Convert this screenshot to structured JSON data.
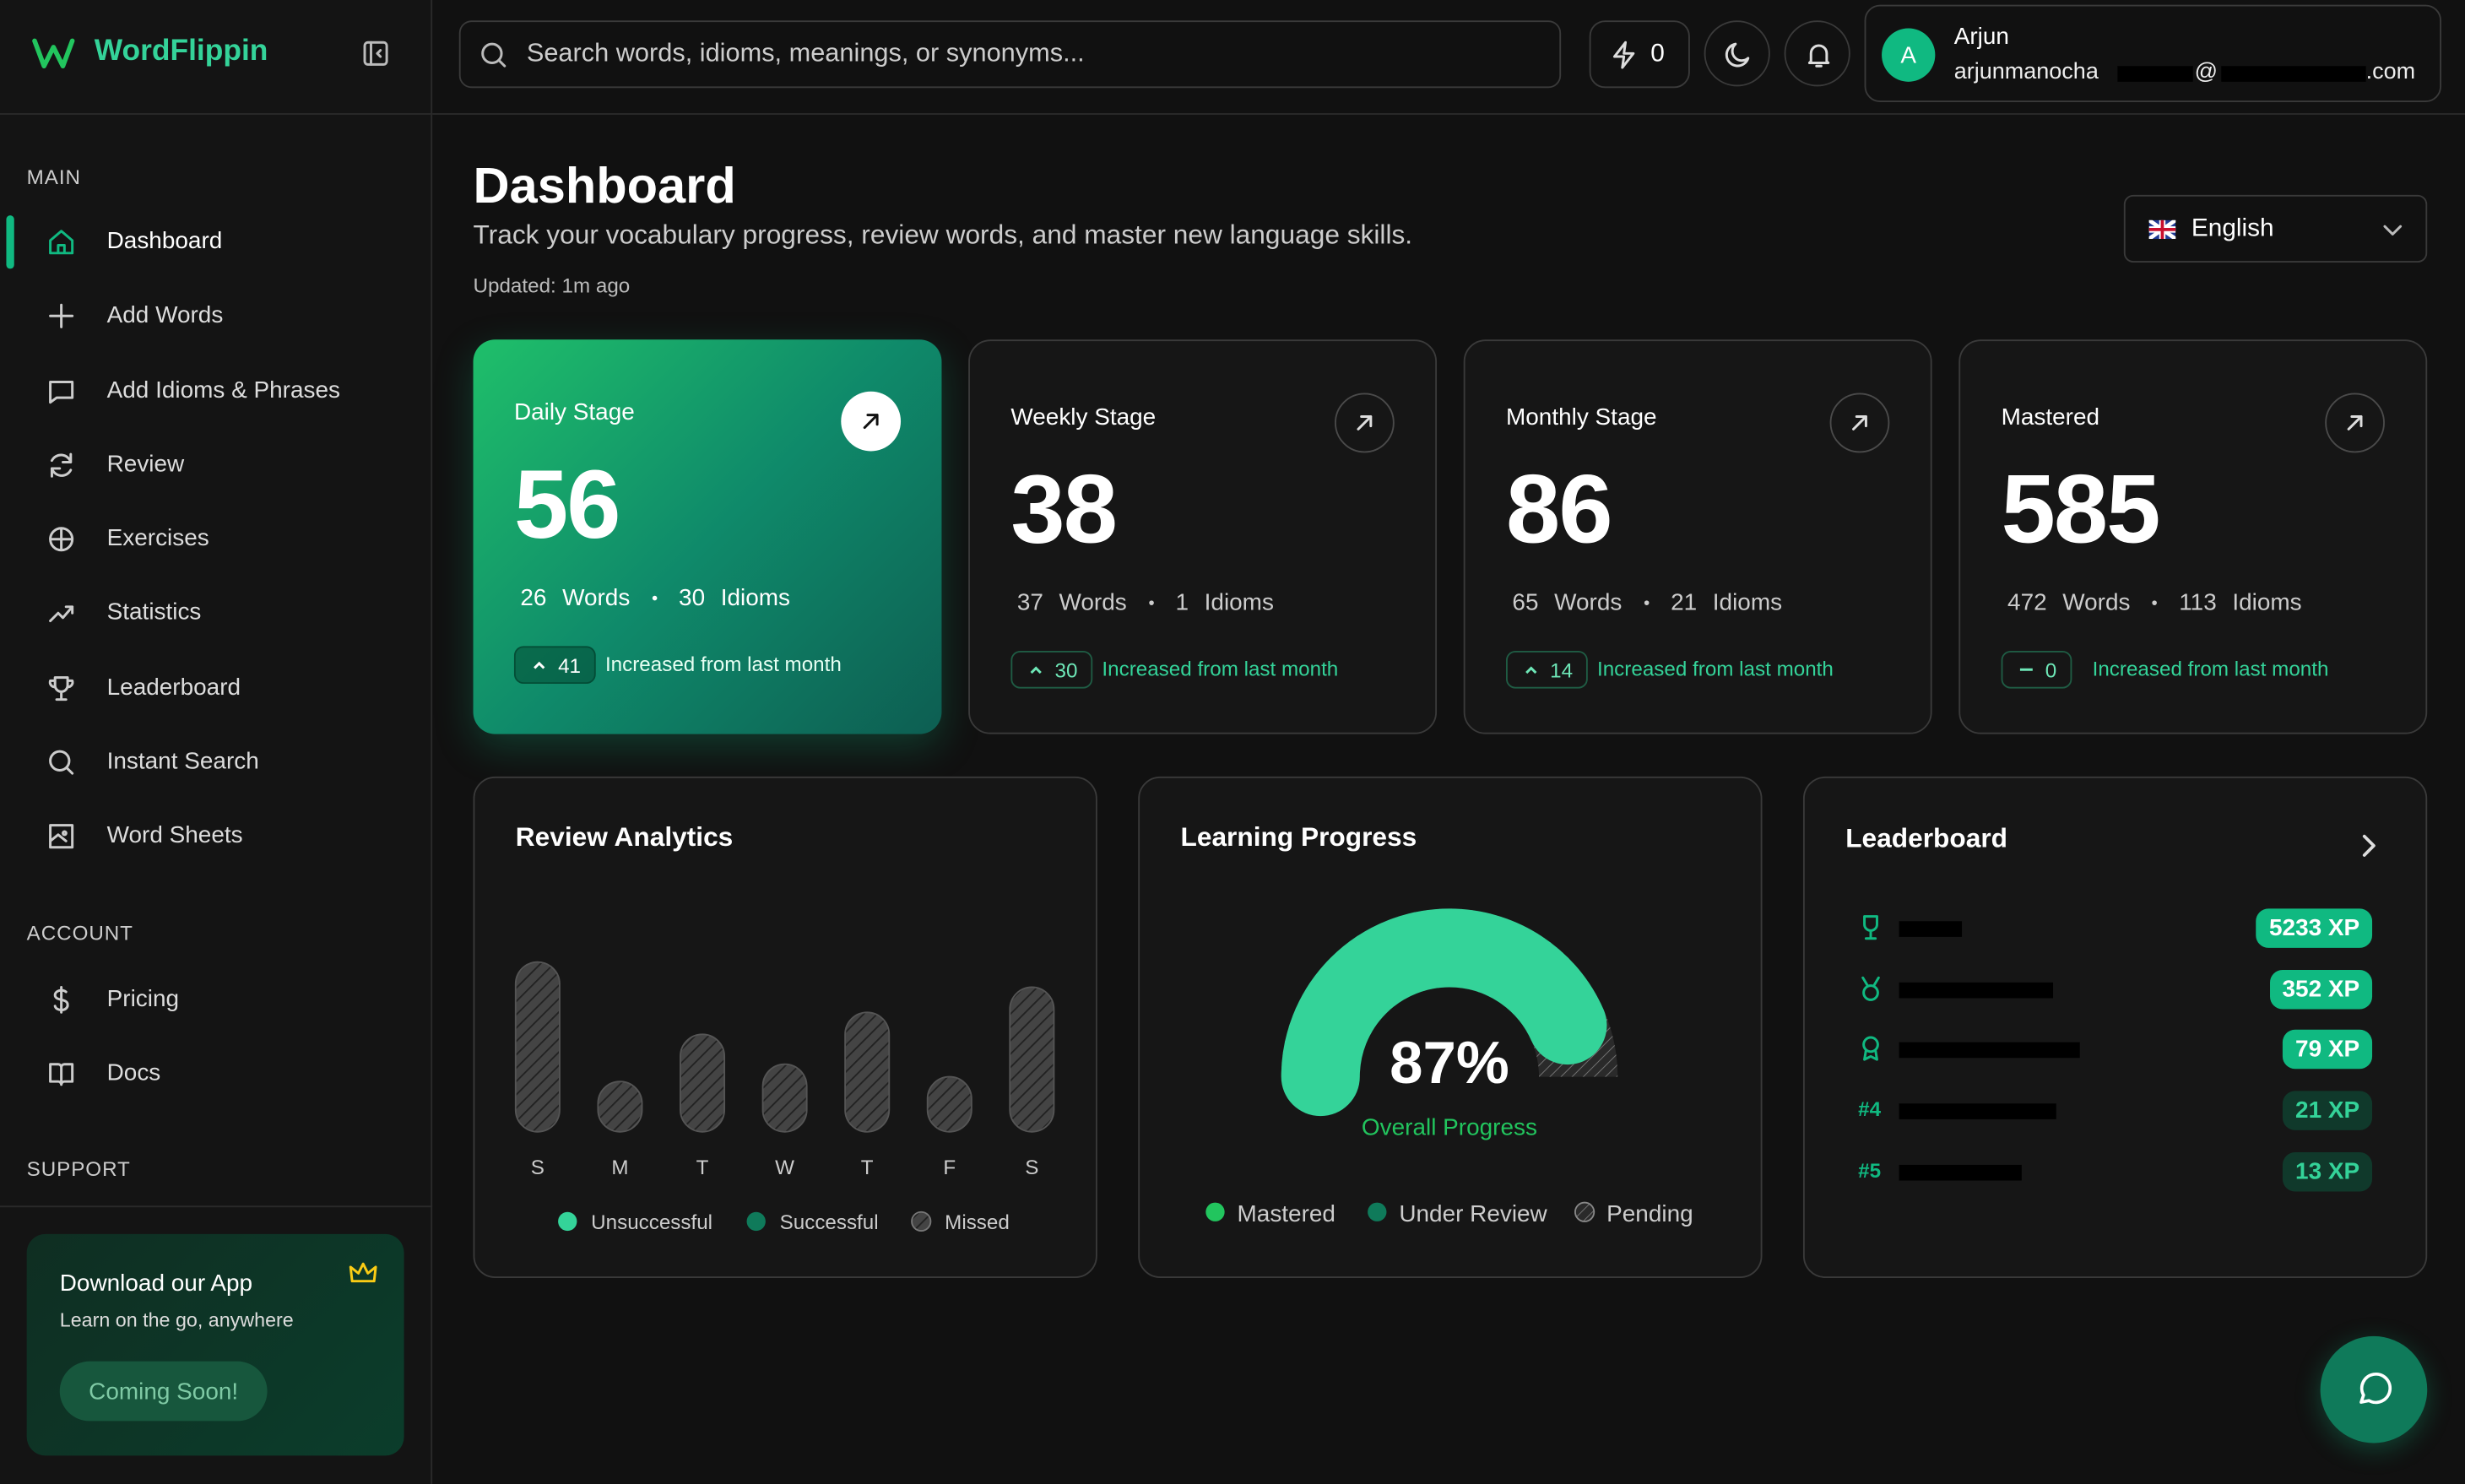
{
  "sidebar": {
    "brand": "WordFlippin",
    "main_title": "MAIN",
    "main_items": [
      "Dashboard",
      "Add Words",
      "Add Idioms & Phrases",
      "Review",
      "Exercises",
      "Statistics",
      "Leaderboard",
      "Instant Search",
      "Word Sheets"
    ],
    "account_title": "ACCOUNT",
    "account_items": [
      "Pricing",
      "Docs"
    ],
    "support_title": "SUPPORT",
    "promo": {
      "title": "Download our App",
      "text": "Learn on the go, anywhere",
      "button": "Coming Soon!"
    }
  },
  "topbar": {
    "search_placeholder": "Search words, idioms, meanings, or synonyms...",
    "streak": 0,
    "user": {
      "initial": "A",
      "name": "Arjun",
      "email_parts": [
        "arjunmanocha",
        "@",
        ".com"
      ]
    }
  },
  "header": {
    "title": "Dashboard",
    "subtitle": "Track your vocabulary progress, review words, and master new language skills.",
    "updated": "Updated: 1m ago",
    "language": "English"
  },
  "stats": [
    {
      "label": "Daily Stage",
      "value": 56,
      "words": 26,
      "words_label": "Words",
      "idioms": 30,
      "idioms_label": "Idioms",
      "change": 41,
      "change_text": "Increased from last month"
    },
    {
      "label": "Weekly Stage",
      "value": 38,
      "words": 37,
      "words_label": "Words",
      "idioms": 1,
      "idioms_label": "Idioms",
      "change": 30,
      "change_text": "Increased from last month"
    },
    {
      "label": "Monthly Stage",
      "value": 86,
      "words": 65,
      "words_label": "Words",
      "idioms": 21,
      "idioms_label": "Idioms",
      "change": 14,
      "change_text": "Increased from last month"
    },
    {
      "label": "Mastered",
      "value": 585,
      "words": 472,
      "words_label": "Words",
      "idioms": 113,
      "idioms_label": "Idioms",
      "change": 0,
      "change_text": "Increased from last month"
    }
  ],
  "review_analytics": {
    "title": "Review Analytics",
    "days": [
      "S",
      "M",
      "T",
      "W",
      "T",
      "F",
      "S"
    ],
    "values": [
      108,
      32,
      62,
      43,
      76,
      35,
      92
    ],
    "legend": [
      "Unsuccessful",
      "Successful",
      "Missed"
    ]
  },
  "learning_progress": {
    "title": "Learning Progress",
    "value": 87,
    "value_label": "87%",
    "caption": "Overall Progress",
    "legend": [
      "Mastered",
      "Under Review",
      "Pending"
    ]
  },
  "leaderboard": {
    "title": "Leaderboard",
    "entries": [
      {
        "xp": 5233,
        "xp_label": "5233 XP"
      },
      {
        "xp": 352,
        "xp_label": "352 XP"
      },
      {
        "xp": 79,
        "xp_label": "79 XP"
      },
      {
        "rank": "#4",
        "xp": 21,
        "xp_label": "21 XP"
      },
      {
        "rank": "#5",
        "xp": 13,
        "xp_label": "13 XP"
      }
    ]
  }
}
